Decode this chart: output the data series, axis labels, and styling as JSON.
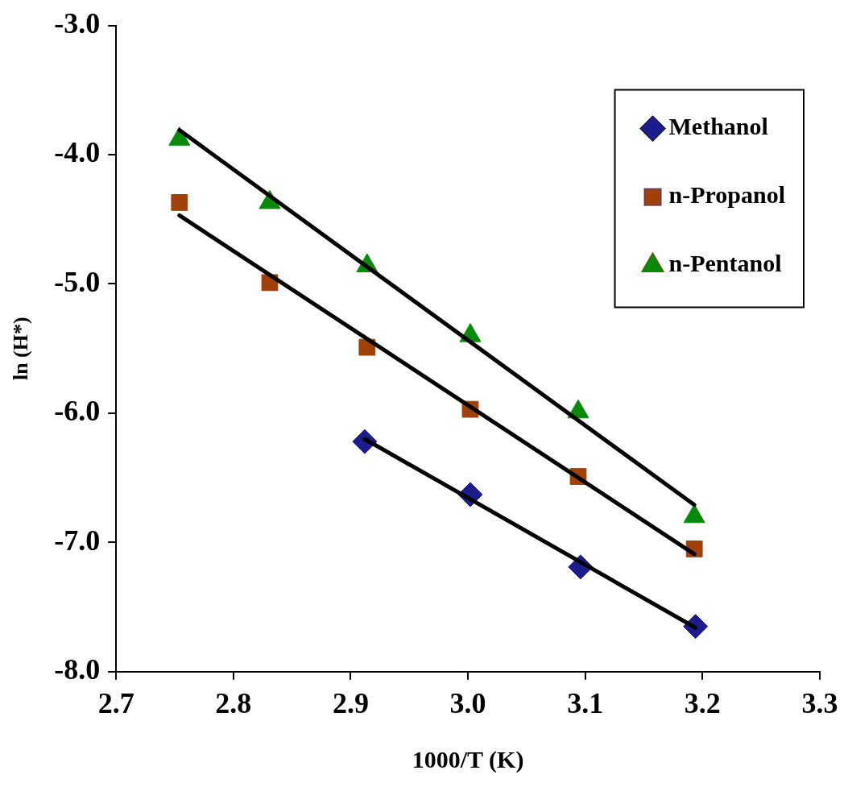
{
  "chart_data": {
    "type": "scatter",
    "xlabel": "1000/T (K)",
    "ylabel": "ln (H*)",
    "xlim": [
      2.7,
      3.3
    ],
    "xticks": [
      2.7,
      2.8,
      2.9,
      {
        "value": 3.0,
        "label": "3.0"
      },
      3.1,
      3.2,
      3.3
    ],
    "ylim": [
      -8,
      -3
    ],
    "yticks": [
      {
        "value": -8,
        "label": "-8.0"
      },
      {
        "value": -7,
        "label": "-7.0"
      },
      {
        "value": -6,
        "label": "-6.0"
      },
      {
        "value": -5,
        "label": "-5.0"
      },
      {
        "value": -4,
        "label": "-4.0"
      },
      {
        "value": -3,
        "label": "-3.0"
      }
    ],
    "grid": false,
    "legend": "top right",
    "series": [
      {
        "name": "Methanol",
        "color": "#1c1c8c",
        "marker": "diamond",
        "x": [
          2.912,
          3.002,
          3.096,
          3.194
        ],
        "values": [
          -6.22,
          -6.63,
          -7.19,
          -7.65
        ]
      },
      {
        "name": "n-Propanol",
        "color": "#a0400a",
        "marker": "square",
        "x": [
          2.754,
          2.831,
          2.914,
          3.002,
          3.094,
          3.193
        ],
        "values": [
          -4.37,
          -4.99,
          -5.49,
          -5.97,
          -6.49,
          -7.05
        ]
      },
      {
        "name": "n-Pentanol",
        "color": "#0a8a0a",
        "marker": "triangle",
        "x": [
          2.754,
          2.831,
          2.914,
          3.002,
          3.094,
          3.193
        ],
        "values": [
          -3.88,
          -4.37,
          -4.86,
          -5.4,
          -5.99,
          -6.8
        ]
      },
      {
        "type": "line",
        "color": "#000000",
        "marker": "none",
        "x": [
          2.912,
          3.194
        ],
        "values": [
          -6.2,
          -7.66
        ]
      },
      {
        "type": "line",
        "color": "#000000",
        "marker": "none",
        "x": [
          2.754,
          3.193
        ],
        "values": [
          -4.47,
          -7.09
        ]
      },
      {
        "type": "line",
        "color": "#000000",
        "marker": "none",
        "x": [
          2.754,
          3.193
        ],
        "values": [
          -3.81,
          -6.71
        ]
      }
    ]
  }
}
